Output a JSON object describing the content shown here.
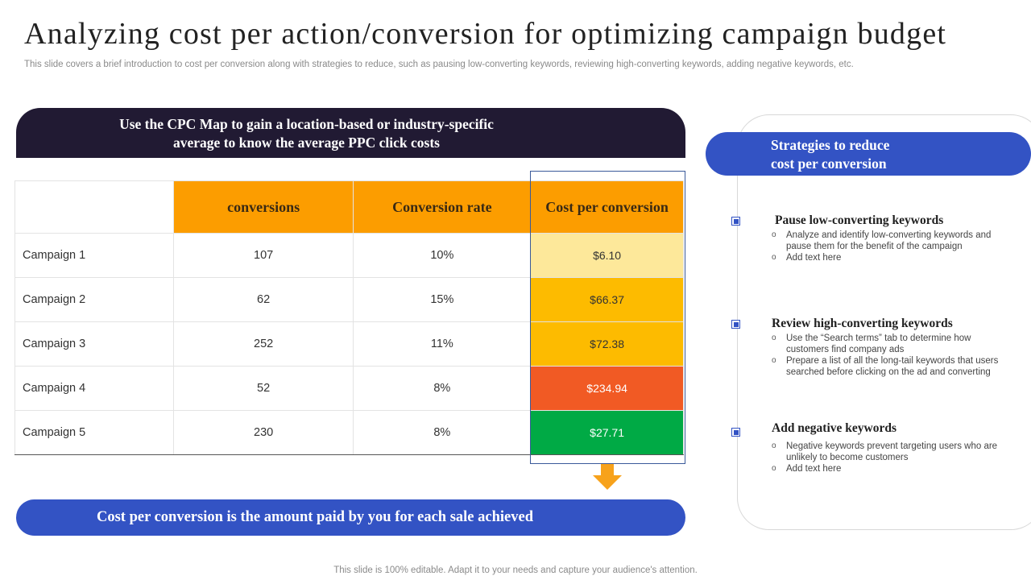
{
  "title": "Analyzing cost per action/conversion for optimizing campaign budget",
  "subtitle": "This slide covers a brief introduction to cost per conversion along with strategies to reduce, such as pausing low-converting keywords, reviewing high-converting keywords, adding negative keywords, etc.",
  "top_banner": {
    "line1": "Use the CPC Map to gain a location-based or industry-specific",
    "line2": "average to know the average PPC click costs"
  },
  "table": {
    "headers": [
      "",
      "conversions",
      "Conversion rate",
      "Cost per conversion"
    ],
    "rows": [
      {
        "name": "Campaign 1",
        "conversions": "107",
        "rate": "10%",
        "cpc": "$6.10",
        "color": "#fde89a",
        "text_color": "#333333"
      },
      {
        "name": "Campaign 2",
        "conversions": "62",
        "rate": "15%",
        "cpc": "$66.37",
        "color": "#fdbb00",
        "text_color": "#333333"
      },
      {
        "name": "Campaign 3",
        "conversions": "252",
        "rate": "11%",
        "cpc": "$72.38",
        "color": "#fdbb00",
        "text_color": "#333333"
      },
      {
        "name": "Campaign 4",
        "conversions": "52",
        "rate": "8%",
        "cpc": "$234.94",
        "color": "#f15a24",
        "text_color": "#ffffff"
      },
      {
        "name": "Campaign 5",
        "conversions": "230",
        "rate": "8%",
        "cpc": "$27.71",
        "color": "#00aa45",
        "text_color": "#ffffff"
      }
    ]
  },
  "bottom_banner": "Cost per conversion is the amount paid by you for each sale achieved",
  "strategies_panel": {
    "header_line1": "Strategies to reduce",
    "header_line2": "cost per conversion",
    "items": [
      {
        "title": "Pause low-converting keywords",
        "bullets": [
          "Analyze  and identify low-converting keywords and pause them for the benefit of the campaign",
          "Add text here"
        ]
      },
      {
        "title": "Review high-converting keywords",
        "bullets": [
          "Use the “Search terms” tab to determine how customers find company ads",
          "Prepare a list of all the long-tail keywords that users searched before clicking on the ad and converting"
        ]
      },
      {
        "title": "Add negative keywords",
        "bullets": [
          "Negative keywords prevent targeting users who are unlikely to become customers",
          "Add text here"
        ]
      }
    ]
  },
  "footer": "This slide is 100% editable. Adapt it to your needs and capture your audience's attention.",
  "colors": {
    "dark_banner": "#211a33",
    "accent_blue": "#3353c4",
    "header_orange": "#fc9d00",
    "arrow_orange": "#f7a21b"
  }
}
